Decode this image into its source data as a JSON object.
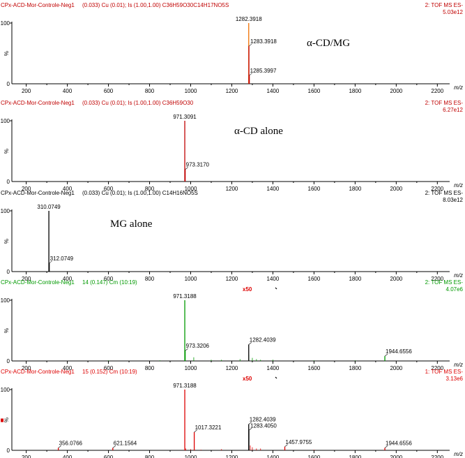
{
  "chart_data": [
    {
      "type": "mass-spectrum",
      "color": "#c00000",
      "header_left": "CPx-ACD-Mor-Controle-Neg1",
      "header_mid": "(0.033) Cu (0.01); Is (1.00,1.00) C36H59O30C14H17NO5S",
      "header_right": "2: TOF MS ES-",
      "intensity": "5.03e12",
      "annotation": "α-CD/MG",
      "y_top_label": "100",
      "y_unit": "%",
      "y_bottom_label": "0",
      "x_unit": "m/z",
      "xlim": [
        130,
        2260
      ],
      "ylim": [
        0,
        100
      ],
      "x_ticks": [
        200,
        400,
        600,
        800,
        1000,
        1200,
        1400,
        1600,
        1800,
        2000,
        2200
      ],
      "peaks": [
        {
          "x": 1282.3918,
          "y": 100,
          "label": "1282.3918",
          "color": "#f07000"
        },
        {
          "x": 1283.3918,
          "y": 62,
          "label": "1283.3918"
        },
        {
          "x": 1285.3997,
          "y": 14,
          "label": "1285.3997"
        }
      ],
      "baseline_noise": []
    },
    {
      "type": "mass-spectrum",
      "color": "#c00000",
      "header_left": "CPx-ACD-Mor-Controle-Neg1",
      "header_mid": "(0.033) Cu (0.01); Is (1.00,1.00) C36H59O30",
      "header_right": "2: TOF MS ES-",
      "intensity": "6.27e12",
      "annotation": "α-CD alone",
      "y_top_label": "100",
      "y_unit": "%",
      "y_bottom_label": "0",
      "x_unit": "m/z",
      "xlim": [
        130,
        2260
      ],
      "ylim": [
        0,
        100
      ],
      "x_ticks": [
        200,
        400,
        600,
        800,
        1000,
        1200,
        1400,
        1600,
        1800,
        2000,
        2200
      ],
      "peaks": [
        {
          "x": 971.3091,
          "y": 100,
          "label": "971.3091"
        },
        {
          "x": 973.317,
          "y": 20,
          "label": "973.3170"
        }
      ],
      "baseline_noise": []
    },
    {
      "type": "mass-spectrum",
      "color": "#000000",
      "header_left": "CPx-ACD-Mor-Controle-Neg1",
      "header_mid": "(0.033) Cu (0.01); Is (1.00,1.00) C14H16NO5S",
      "header_right": "2: TOF MS ES-",
      "intensity": "8.03e12",
      "annotation": "MG alone",
      "y_top_label": "100",
      "y_unit": "%",
      "y_bottom_label": "0",
      "x_unit": "m/z",
      "xlim": [
        130,
        2260
      ],
      "ylim": [
        0,
        100
      ],
      "x_ticks": [
        200,
        400,
        600,
        800,
        1000,
        1200,
        1400,
        1600,
        1800,
        2000,
        2200
      ],
      "peaks": [
        {
          "x": 310.0749,
          "y": 100,
          "label": "310.0749"
        },
        {
          "x": 312.0749,
          "y": 14,
          "label": "312.0749"
        }
      ],
      "baseline_noise": []
    },
    {
      "type": "mass-spectrum",
      "color": "#009900",
      "header_left": "CPx-ACD-Mor-Controle-Neg1",
      "header_mid": "14 (0.147) Cm (10:19)",
      "header_right": "2: TOF MS ES-",
      "intensity": "4.07e6",
      "annotation": "",
      "magnify": "x50",
      "y_top_label": "100",
      "y_unit": "%",
      "y_bottom_label": "0",
      "x_unit": "m/z",
      "xlim": [
        130,
        2260
      ],
      "ylim": [
        0,
        100
      ],
      "x_ticks": [
        200,
        400,
        600,
        800,
        1000,
        1200,
        1400,
        1600,
        1800,
        2000,
        2200
      ],
      "peaks": [
        {
          "x": 971.3188,
          "y": 100,
          "label": "971.3188"
        },
        {
          "x": 973.3206,
          "y": 17,
          "label": "973.3206"
        },
        {
          "x": 1282.4039,
          "y": 27,
          "label": "1282.4039",
          "color": "#000000"
        },
        {
          "x": 1944.6556,
          "y": 8,
          "label": "1944.6556"
        }
      ],
      "baseline_noise": [
        {
          "x": 600,
          "y": 1
        },
        {
          "x": 850,
          "y": 1
        },
        {
          "x": 1015,
          "y": 6
        },
        {
          "x": 1100,
          "y": 2
        },
        {
          "x": 1150,
          "y": 2
        },
        {
          "x": 1240,
          "y": 3
        },
        {
          "x": 1283,
          "y": 10
        },
        {
          "x": 1300,
          "y": 5
        },
        {
          "x": 1320,
          "y": 3
        },
        {
          "x": 1340,
          "y": 2
        },
        {
          "x": 1400,
          "y": 2
        },
        {
          "x": 1600,
          "y": 1
        },
        {
          "x": 1800,
          "y": 1
        }
      ]
    },
    {
      "type": "mass-spectrum",
      "color": "#dd0000",
      "header_left": "CPx-ACD-Mor-Controle-Neg1",
      "header_mid": "15 (0.152) Cm (10:19)",
      "header_right": "1: TOF MS ES-",
      "intensity": "3.13e6",
      "annotation": "",
      "magnify": "x50",
      "y_top_label": "100",
      "y_unit": "%",
      "y_bottom_label": "0",
      "x_unit": "m/z",
      "xlim": [
        130,
        2260
      ],
      "ylim": [
        0,
        100
      ],
      "x_ticks": [
        200,
        400,
        600,
        800,
        1000,
        1200,
        1400,
        1600,
        1800,
        2000,
        2200
      ],
      "peaks": [
        {
          "x": 356.0766,
          "y": 4,
          "label": "356.0766"
        },
        {
          "x": 621.1564,
          "y": 4,
          "label": "621.1564"
        },
        {
          "x": 971.3188,
          "y": 100,
          "label": "971.3188"
        },
        {
          "x": 1017.3221,
          "y": 30,
          "label": "1017.3221"
        },
        {
          "x": 1282.4039,
          "y": 43,
          "label": "1282.4039",
          "color": "#000000"
        },
        {
          "x": 1283.405,
          "y": 33,
          "label": "1283.4050",
          "color": "#000000"
        },
        {
          "x": 1457.9755,
          "y": 6,
          "label": "1457.9755"
        },
        {
          "x": 1944.6556,
          "y": 4,
          "label": "1944.6556"
        }
      ],
      "baseline_noise": [
        {
          "x": 976,
          "y": 3
        },
        {
          "x": 1000,
          "y": 2
        },
        {
          "x": 1050,
          "y": 1
        },
        {
          "x": 1150,
          "y": 2
        },
        {
          "x": 1290,
          "y": 8
        },
        {
          "x": 1300,
          "y": 5
        },
        {
          "x": 1320,
          "y": 3
        },
        {
          "x": 1340,
          "y": 3
        },
        {
          "x": 1600,
          "y": 1
        }
      ]
    }
  ]
}
